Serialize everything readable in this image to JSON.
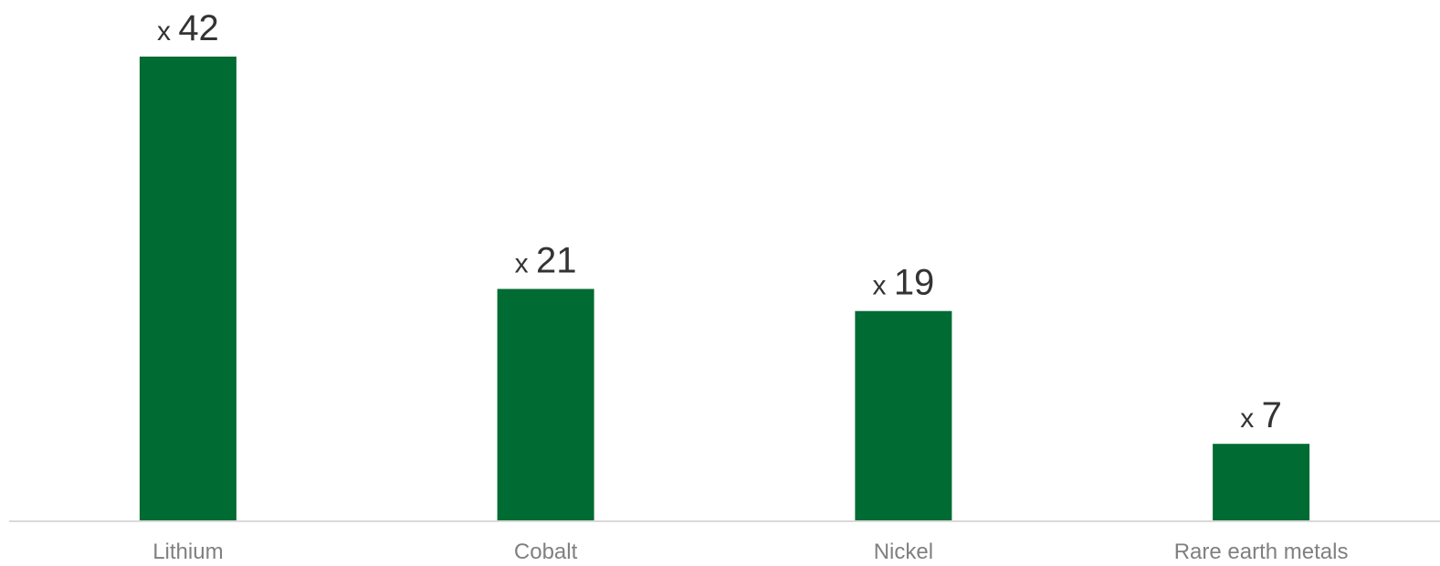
{
  "chart_data": {
    "type": "bar",
    "categories": [
      "Lithium",
      "Cobalt",
      "Nickel",
      "Rare earth metals"
    ],
    "values": [
      42,
      21,
      19,
      7
    ],
    "data_labels": [
      {
        "prefix": "x",
        "value": "42"
      },
      {
        "prefix": "x",
        "value": "21"
      },
      {
        "prefix": "x",
        "value": "19"
      },
      {
        "prefix": "x",
        "value": "7"
      }
    ],
    "ylim": [
      0,
      42
    ],
    "grid": false,
    "legend": "none",
    "colors": {
      "bar": "#006b33",
      "axis": "#d9d9d9",
      "label": "#333333",
      "tick": "#808080"
    }
  }
}
